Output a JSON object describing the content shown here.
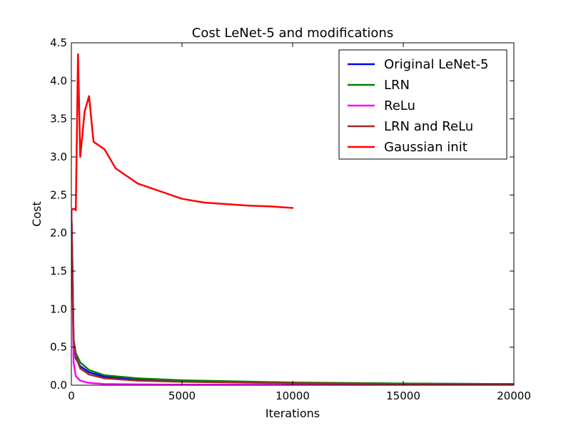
{
  "chart_data": {
    "type": "line",
    "title": "Cost LeNet-5 and modifications",
    "xlabel": "Iterations",
    "ylabel": "Cost",
    "xlim": [
      0,
      20000
    ],
    "ylim": [
      0,
      4.5
    ],
    "xticks": [
      0,
      5000,
      10000,
      15000,
      20000
    ],
    "xtick_labels": [
      "0",
      "5000",
      "10000",
      "15000",
      "20000"
    ],
    "yticks": [
      0,
      0.5,
      1.0,
      1.5,
      2.0,
      2.5,
      3.0,
      3.5,
      4.0,
      4.5
    ],
    "ytick_labels": [
      "0.0",
      "0.5",
      "1.0",
      "1.5",
      "2.0",
      "2.5",
      "3.0",
      "3.5",
      "4.0",
      "4.5"
    ],
    "grid": false,
    "legend_position": "top-right",
    "series": [
      {
        "name": "Original LeNet-5",
        "color": "#0000ff",
        "x": [
          0,
          50,
          100,
          200,
          400,
          800,
          1500,
          3000,
          5000,
          10000,
          15000,
          20000
        ],
        "y": [
          2.3,
          1.5,
          0.55,
          0.35,
          0.25,
          0.17,
          0.11,
          0.07,
          0.05,
          0.03,
          0.02,
          0.015
        ]
      },
      {
        "name": "LRN",
        "color": "#008000",
        "x": [
          0,
          50,
          100,
          200,
          400,
          800,
          1500,
          3000,
          5000,
          10000,
          15000,
          20000
        ],
        "y": [
          2.3,
          1.6,
          0.6,
          0.42,
          0.3,
          0.2,
          0.13,
          0.09,
          0.065,
          0.035,
          0.022,
          0.015
        ]
      },
      {
        "name": "ReLu",
        "color": "#ff00ff",
        "x": [
          0,
          50,
          100,
          200,
          400,
          800,
          1500,
          3000,
          5000,
          10000,
          15000,
          20000
        ],
        "y": [
          2.3,
          1.4,
          0.3,
          0.12,
          0.06,
          0.03,
          0.015,
          0.01,
          0.007,
          0.004,
          0.003,
          0.002
        ]
      },
      {
        "name": "LRN and ReLu",
        "color": "#a52a2a",
        "x": [
          0,
          50,
          100,
          200,
          400,
          800,
          1500,
          3000,
          5000,
          10000,
          15000,
          20000
        ],
        "y": [
          2.3,
          1.45,
          0.6,
          0.38,
          0.22,
          0.14,
          0.09,
          0.06,
          0.045,
          0.025,
          0.015,
          0.01
        ]
      },
      {
        "name": "Gaussian init",
        "color": "#ff0000",
        "x": [
          0,
          100,
          200,
          300,
          400,
          600,
          800,
          1000,
          1500,
          2000,
          3000,
          4000,
          5000,
          6000,
          7000,
          8000,
          9000,
          10000
        ],
        "y": [
          2.3,
          2.32,
          2.3,
          4.35,
          3.0,
          3.6,
          3.8,
          3.2,
          3.1,
          2.85,
          2.65,
          2.55,
          2.45,
          2.4,
          2.38,
          2.36,
          2.35,
          2.33
        ]
      }
    ]
  }
}
